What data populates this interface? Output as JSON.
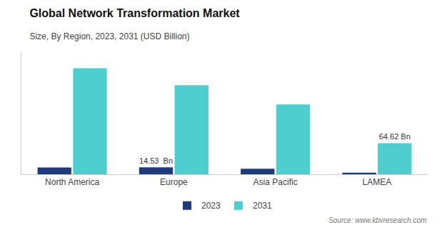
{
  "chart_data": {
    "type": "bar",
    "title": "Global Network Transformation Market",
    "subtitle": "Size, By Region, 2023, 2031 (USD Billion)",
    "source": "Source: www.kbvresearch.com",
    "categories": [
      "North America",
      "Europe",
      "Asia Pacific",
      "LAMEA"
    ],
    "series": [
      {
        "name": "2023",
        "color": "#1e3a7a",
        "values": [
          14.0,
          14.53,
          11.5,
          3.5
        ]
      },
      {
        "name": "2031",
        "color": "#4ecece",
        "values": [
          220.0,
          185.0,
          145.0,
          64.62
        ]
      }
    ],
    "annotations": [
      {
        "text": "14.53  Bn",
        "category": "Europe",
        "series": "2023"
      },
      {
        "text": "64.62 Bn",
        "category": "LAMEA",
        "series": "2031"
      }
    ],
    "ylim": [
      0,
      255
    ],
    "grid": false,
    "legend": "bottom",
    "tick_labels": "x"
  }
}
